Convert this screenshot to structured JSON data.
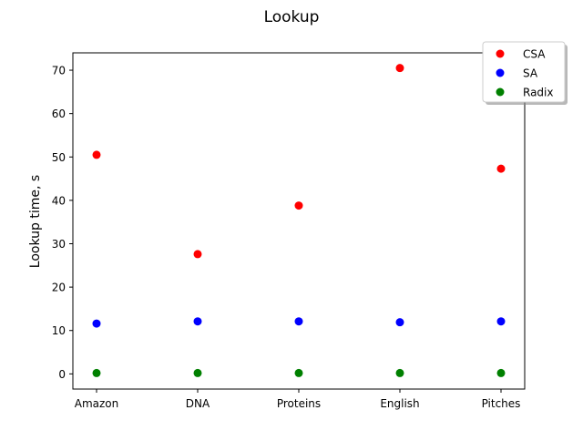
{
  "chart_data": {
    "type": "scatter",
    "title": "Lookup",
    "xlabel": "",
    "ylabel": "Lookup time, s",
    "categories": [
      "Amazon",
      "DNA",
      "Proteins",
      "English",
      "Pitches"
    ],
    "ylim": [
      -3.5,
      74
    ],
    "yticks": [
      0,
      10,
      20,
      30,
      40,
      50,
      60,
      70
    ],
    "grid": false,
    "legend_position": "top-right",
    "series": [
      {
        "name": "CSA",
        "color": "#ff0000",
        "values": [
          50.5,
          27.6,
          38.8,
          70.5,
          47.3
        ]
      },
      {
        "name": "SA",
        "color": "#0000ff",
        "values": [
          11.6,
          12.1,
          12.1,
          11.9,
          12.1
        ]
      },
      {
        "name": "Radix",
        "color": "#008000",
        "values": [
          0.2,
          0.2,
          0.2,
          0.2,
          0.2
        ]
      }
    ]
  }
}
